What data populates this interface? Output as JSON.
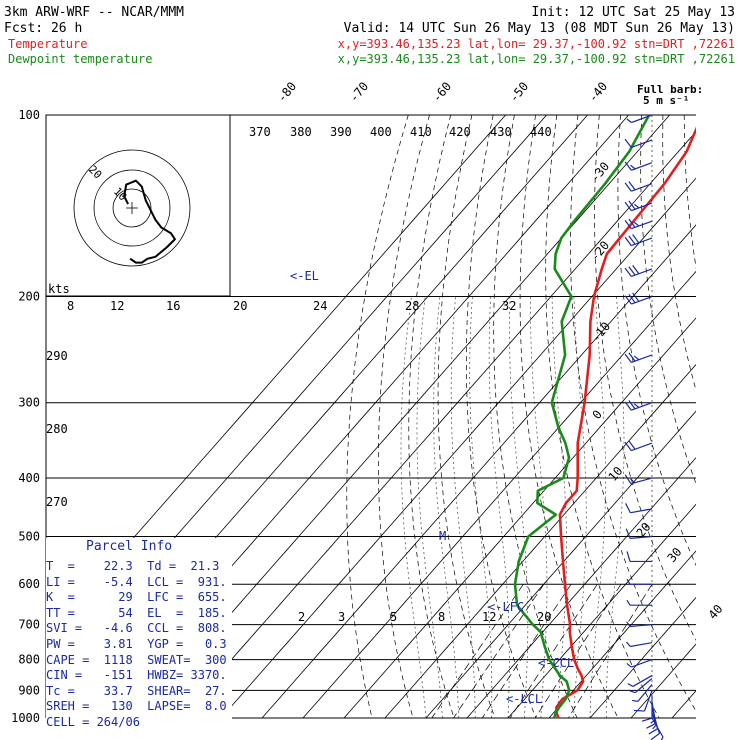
{
  "header": {
    "model": "3km ARW-WRF -- NCAR/MMM",
    "init": "Init: 12 UTC Sat 25 May 13",
    "fcst": "Fcst:   26 h",
    "valid": "Valid: 14 UTC Sun 26 May 13 (08 MDT Sun 26 May 13)",
    "temp_label": "Temperature",
    "temp_loc": "x,y=393.46,135.23   lat,lon= 29.37,-100.92   stn=DRT ,72261",
    "dew_label": "Dewpoint temperature",
    "dew_loc": "x,y=393.46,135.23   lat,lon= 29.37,-100.92   stn=DRT ,72261"
  },
  "colors": {
    "temperature": "#e02020",
    "dewpoint": "#1a8a1a",
    "text_blue": "#1a2aa0",
    "grid": "#000000"
  },
  "barb_legend": {
    "line1": "Full barb:",
    "line2": "5 m s⁻¹"
  },
  "parcel_info": {
    "title": "Parcel Info",
    "rows": [
      "T  =    22.3  Td =  21.3",
      "LI =    -5.4  LCL =  931.",
      "K  =      29  LFC =  655.",
      "TT =      54  EL  =  185.",
      "SVI =   -4.6  CCL =  808.",
      "PW =    3.81  YGP =   0.3",
      "CAPE =  1118  SWEAT=  300",
      "CIN =   -151  HWBZ= 3370.",
      "Tc =    33.7  SHEAR=  27.",
      "SREH =   130  LAPSE=  8.0",
      "CELL = 264/06"
    ]
  },
  "annotations": {
    "el": "<-EL",
    "lfc": "<-LFC",
    "ccl": "<-CCL",
    "lcl": "<-LCL",
    "m": "M"
  },
  "hodograph": {
    "units": "kts",
    "rings": [
      "10",
      "20"
    ]
  },
  "chart_data": {
    "type": "line",
    "title": "",
    "ylabel": "",
    "pressure_ticks": [
      100,
      200,
      300,
      400,
      500,
      600,
      700,
      800,
      900,
      1000
    ],
    "isotherm_labels": [
      "-80",
      "-70",
      "-60",
      "-50",
      "-40",
      "-30",
      "-20",
      "-10",
      "0",
      "10",
      "20",
      "30",
      "40"
    ],
    "theta_labels": [
      "370",
      "380",
      "390",
      "400",
      "410",
      "420",
      "430",
      "440",
      "290",
      "280",
      "270"
    ],
    "mixing_ratio_upper": [
      "8",
      "12",
      "16",
      "20",
      "24",
      "28",
      "32"
    ],
    "mixing_ratio_lower": [
      "2",
      "3",
      "5",
      "8",
      "12",
      "20"
    ],
    "series": [
      {
        "name": "Temperature",
        "p": [
          1000,
          980,
          960,
          930,
          900,
          870,
          850,
          830,
          800,
          760,
          720,
          700,
          650,
          600,
          550,
          500,
          460,
          440,
          420,
          400,
          350,
          300,
          250,
          220,
          200,
          180,
          170,
          150,
          130,
          115,
          100
        ],
        "t": [
          22.3,
          20.7,
          19.5,
          19.2,
          21.0,
          20.5,
          18.8,
          16.6,
          13.6,
          10.1,
          6.6,
          5.1,
          0.2,
          -4.8,
          -10.2,
          -16.0,
          -21.0,
          -22.0,
          -22.0,
          -24.5,
          -32.0,
          -39.0,
          -48.0,
          -55.0,
          -59.5,
          -63.5,
          -65.5,
          -66.0,
          -66.5,
          -68.0,
          -72.0
        ]
      },
      {
        "name": "Dewpoint temperature",
        "p": [
          1000,
          980,
          960,
          930,
          900,
          870,
          850,
          800,
          760,
          720,
          700,
          650,
          600,
          550,
          500,
          460,
          440,
          420,
          400,
          370,
          350,
          330,
          300,
          250,
          220,
          200,
          180,
          170,
          160,
          150,
          130,
          115,
          100
        ],
        "t": [
          21.3,
          20.5,
          20.2,
          20.0,
          19.0,
          16.5,
          13.5,
          7.5,
          3.5,
          -0.5,
          -4.0,
          -12.0,
          -17.0,
          -21.0,
          -24.0,
          -22.0,
          -29.0,
          -31.5,
          -28.0,
          -31.0,
          -35.0,
          -40.0,
          -47.0,
          -54.0,
          -62.0,
          -65.0,
          -75.0,
          -78.0,
          -80.0,
          -80.5,
          -81.0,
          -82.0,
          -85.0
        ]
      }
    ],
    "winds": {
      "p": [
        1000,
        980,
        960,
        940,
        920,
        900,
        880,
        860,
        850,
        800,
        750,
        700,
        650,
        600,
        550,
        500,
        450,
        400,
        350,
        300,
        250,
        200,
        180,
        160,
        150,
        140,
        130,
        120,
        110,
        100
      ],
      "dir": [
        150,
        160,
        165,
        170,
        180,
        200,
        220,
        230,
        240,
        250,
        260,
        265,
        270,
        270,
        270,
        265,
        260,
        255,
        250,
        250,
        250,
        250,
        250,
        250,
        250,
        250,
        250,
        250,
        250,
        250
      ],
      "spd": [
        5,
        10,
        15,
        15,
        12,
        10,
        8,
        8,
        8,
        5,
        5,
        5,
        5,
        8,
        10,
        10,
        10,
        15,
        20,
        25,
        25,
        30,
        30,
        30,
        25,
        25,
        20,
        15,
        10,
        5
      ]
    },
    "hodograph_trace": {
      "u": [
        -2,
        -4,
        -3,
        2,
        5,
        7,
        10,
        12,
        15,
        20,
        22,
        18,
        12,
        8,
        5,
        2,
        -1
      ],
      "v": [
        -2,
        -6,
        -12,
        -14,
        -11,
        -4,
        2,
        6,
        10,
        13,
        16,
        20,
        25,
        26,
        28,
        28,
        26
      ]
    }
  }
}
